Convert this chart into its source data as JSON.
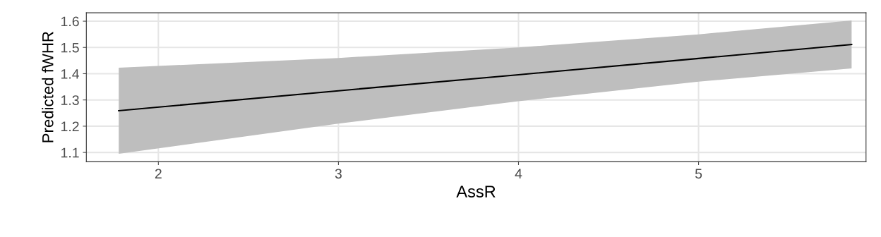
{
  "chart_data": {
    "type": "line",
    "xlabel": "AssR",
    "ylabel": "Predicted fWHR",
    "x": [
      1.78,
      3,
      4,
      5,
      5.85
    ],
    "series": [
      {
        "color": "#000000",
        "values": [
          1.259,
          1.335,
          1.396,
          1.458,
          1.511
        ],
        "lower": [
          1.095,
          1.21,
          1.295,
          1.37,
          1.42
        ],
        "upper": [
          1.423,
          1.46,
          1.5,
          1.55,
          1.603
        ]
      }
    ],
    "xlim": [
      1.6,
      5.93
    ],
    "ylim": [
      1.065,
      1.632
    ],
    "xticks": [
      2,
      3,
      4,
      5
    ],
    "yticks": [
      1.1,
      1.2,
      1.3,
      1.4,
      1.5,
      1.6
    ],
    "grid": true,
    "marker": "none",
    "line_style": "solid"
  }
}
